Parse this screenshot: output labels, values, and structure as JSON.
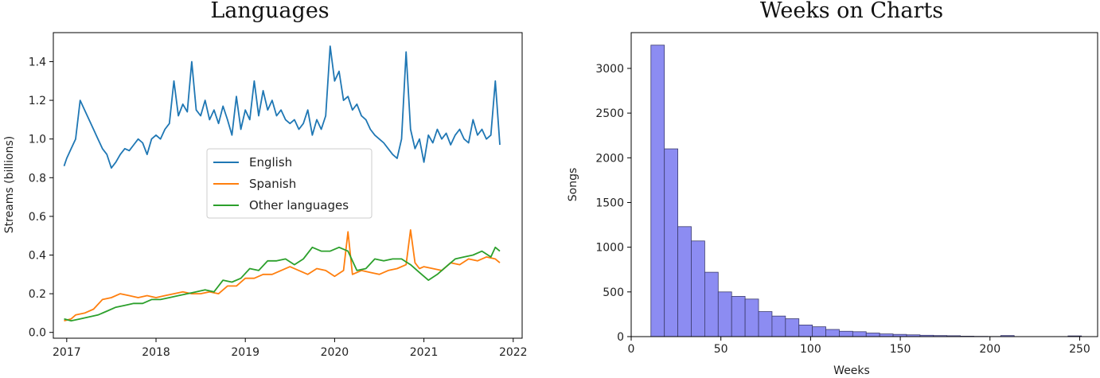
{
  "chart_data": [
    {
      "type": "line",
      "title": "Languages",
      "xlabel": "",
      "ylabel": "Streams (billions)",
      "xlim": [
        2016.85,
        2022.1
      ],
      "ylim": [
        -0.03,
        1.55
      ],
      "xticks": [
        2017,
        2018,
        2019,
        2020,
        2021,
        2022
      ],
      "xtick_labels": [
        "2017",
        "2018",
        "2019",
        "2020",
        "2021",
        "2022"
      ],
      "yticks": [
        0.0,
        0.2,
        0.4,
        0.6,
        0.8,
        1.0,
        1.2,
        1.4
      ],
      "ytick_labels": [
        "0.0",
        "0.2",
        "0.4",
        "0.6",
        "0.8",
        "1.0",
        "1.2",
        "1.4"
      ],
      "legend_position": "center",
      "series": [
        {
          "name": "English",
          "color": "#1f77b4",
          "x": [
            2016.97,
            2017.0,
            2017.05,
            2017.1,
            2017.15,
            2017.2,
            2017.25,
            2017.3,
            2017.35,
            2017.4,
            2017.45,
            2017.5,
            2017.55,
            2017.6,
            2017.65,
            2017.7,
            2017.75,
            2017.8,
            2017.85,
            2017.9,
            2017.95,
            2018.0,
            2018.05,
            2018.1,
            2018.15,
            2018.2,
            2018.25,
            2018.3,
            2018.35,
            2018.4,
            2018.45,
            2018.5,
            2018.55,
            2018.6,
            2018.65,
            2018.7,
            2018.75,
            2018.8,
            2018.85,
            2018.9,
            2018.95,
            2019.0,
            2019.05,
            2019.1,
            2019.15,
            2019.2,
            2019.25,
            2019.3,
            2019.35,
            2019.4,
            2019.45,
            2019.5,
            2019.55,
            2019.6,
            2019.65,
            2019.7,
            2019.75,
            2019.8,
            2019.85,
            2019.9,
            2019.95,
            2020.0,
            2020.05,
            2020.1,
            2020.15,
            2020.2,
            2020.25,
            2020.3,
            2020.35,
            2020.4,
            2020.45,
            2020.5,
            2020.55,
            2020.6,
            2020.65,
            2020.7,
            2020.75,
            2020.8,
            2020.85,
            2020.9,
            2020.95,
            2021.0,
            2021.05,
            2021.1,
            2021.15,
            2021.2,
            2021.25,
            2021.3,
            2021.35,
            2021.4,
            2021.45,
            2021.5,
            2021.55,
            2021.6,
            2021.65,
            2021.7,
            2021.75,
            2021.8,
            2021.85
          ],
          "y": [
            0.86,
            0.9,
            0.95,
            1.0,
            1.2,
            1.15,
            1.1,
            1.05,
            1.0,
            0.95,
            0.92,
            0.85,
            0.88,
            0.92,
            0.95,
            0.94,
            0.97,
            1.0,
            0.98,
            0.92,
            1.0,
            1.02,
            1.0,
            1.05,
            1.08,
            1.3,
            1.12,
            1.18,
            1.14,
            1.4,
            1.15,
            1.12,
            1.2,
            1.1,
            1.15,
            1.08,
            1.17,
            1.1,
            1.02,
            1.22,
            1.05,
            1.15,
            1.1,
            1.3,
            1.12,
            1.25,
            1.15,
            1.2,
            1.12,
            1.15,
            1.1,
            1.08,
            1.1,
            1.05,
            1.08,
            1.15,
            1.02,
            1.1,
            1.05,
            1.12,
            1.48,
            1.3,
            1.35,
            1.2,
            1.22,
            1.15,
            1.18,
            1.12,
            1.1,
            1.05,
            1.02,
            1.0,
            0.98,
            0.95,
            0.92,
            0.9,
            1.0,
            1.45,
            1.05,
            0.95,
            1.0,
            0.88,
            1.02,
            0.98,
            1.05,
            1.0,
            1.03,
            0.97,
            1.02,
            1.05,
            1.0,
            0.98,
            1.1,
            1.02,
            1.05,
            1.0,
            1.02,
            1.3,
            0.97
          ]
        },
        {
          "name": "Spanish",
          "color": "#ff7f0e",
          "x": [
            2016.97,
            2017.05,
            2017.1,
            2017.2,
            2017.3,
            2017.4,
            2017.5,
            2017.6,
            2017.7,
            2017.8,
            2017.9,
            2018.0,
            2018.1,
            2018.2,
            2018.3,
            2018.4,
            2018.5,
            2018.6,
            2018.7,
            2018.8,
            2018.9,
            2019.0,
            2019.1,
            2019.2,
            2019.3,
            2019.4,
            2019.5,
            2019.6,
            2019.7,
            2019.8,
            2019.9,
            2020.0,
            2020.1,
            2020.15,
            2020.2,
            2020.3,
            2020.4,
            2020.5,
            2020.6,
            2020.7,
            2020.8,
            2020.85,
            2020.9,
            2020.95,
            2021.0,
            2021.1,
            2021.2,
            2021.3,
            2021.4,
            2021.5,
            2021.6,
            2021.7,
            2021.8,
            2021.85
          ],
          "y": [
            0.06,
            0.07,
            0.09,
            0.1,
            0.12,
            0.17,
            0.18,
            0.2,
            0.19,
            0.18,
            0.19,
            0.18,
            0.19,
            0.2,
            0.21,
            0.2,
            0.2,
            0.21,
            0.2,
            0.24,
            0.24,
            0.28,
            0.28,
            0.3,
            0.3,
            0.32,
            0.34,
            0.32,
            0.3,
            0.33,
            0.32,
            0.29,
            0.32,
            0.52,
            0.3,
            0.32,
            0.31,
            0.3,
            0.32,
            0.33,
            0.35,
            0.53,
            0.36,
            0.33,
            0.34,
            0.33,
            0.32,
            0.36,
            0.35,
            0.38,
            0.37,
            0.39,
            0.38,
            0.36
          ]
        },
        {
          "name": "Other languages",
          "color": "#2ca02c",
          "x": [
            2016.97,
            2017.05,
            2017.15,
            2017.25,
            2017.35,
            2017.45,
            2017.55,
            2017.65,
            2017.75,
            2017.85,
            2017.95,
            2018.05,
            2018.15,
            2018.25,
            2018.35,
            2018.45,
            2018.55,
            2018.65,
            2018.75,
            2018.85,
            2018.95,
            2019.05,
            2019.15,
            2019.25,
            2019.35,
            2019.45,
            2019.55,
            2019.65,
            2019.75,
            2019.85,
            2019.95,
            2020.05,
            2020.15,
            2020.25,
            2020.35,
            2020.45,
            2020.55,
            2020.65,
            2020.75,
            2020.85,
            2020.95,
            2021.05,
            2021.15,
            2021.25,
            2021.35,
            2021.45,
            2021.55,
            2021.65,
            2021.75,
            2021.8,
            2021.85
          ],
          "y": [
            0.07,
            0.06,
            0.07,
            0.08,
            0.09,
            0.11,
            0.13,
            0.14,
            0.15,
            0.15,
            0.17,
            0.17,
            0.18,
            0.19,
            0.2,
            0.21,
            0.22,
            0.21,
            0.27,
            0.26,
            0.28,
            0.33,
            0.32,
            0.37,
            0.37,
            0.38,
            0.35,
            0.38,
            0.44,
            0.42,
            0.42,
            0.44,
            0.42,
            0.32,
            0.33,
            0.38,
            0.37,
            0.38,
            0.38,
            0.35,
            0.31,
            0.27,
            0.3,
            0.34,
            0.38,
            0.39,
            0.4,
            0.42,
            0.39,
            0.44,
            0.42
          ]
        }
      ]
    },
    {
      "type": "bar",
      "title": "Weeks on Charts",
      "xlabel": "Weeks",
      "ylabel": "Songs",
      "xlim": [
        0,
        260
      ],
      "ylim": [
        0,
        3400
      ],
      "xticks": [
        0,
        50,
        100,
        150,
        200,
        250
      ],
      "xtick_labels": [
        "0",
        "50",
        "100",
        "150",
        "200",
        "250"
      ],
      "yticks": [
        0,
        500,
        1000,
        1500,
        2000,
        2500,
        3000
      ],
      "ytick_labels": [
        "0",
        "500",
        "1000",
        "1500",
        "2000",
        "2500",
        "3000"
      ],
      "bar_color": "#8c8cf2",
      "bin_edges": [
        11,
        18.5,
        26,
        33.5,
        41,
        48.5,
        56,
        63.5,
        71,
        78.5,
        86,
        93.5,
        101,
        108.5,
        116,
        123.5,
        131,
        138.5,
        146,
        153.5,
        161,
        168.5,
        176,
        183.5,
        191,
        198.5,
        206,
        213.5,
        221,
        228.5,
        236,
        243.5,
        251
      ],
      "values": [
        3260,
        2100,
        1230,
        1070,
        720,
        500,
        450,
        420,
        280,
        230,
        200,
        130,
        110,
        80,
        60,
        55,
        40,
        30,
        25,
        20,
        15,
        12,
        10,
        5,
        3,
        2,
        12,
        1,
        1,
        1,
        1,
        8
      ]
    }
  ]
}
